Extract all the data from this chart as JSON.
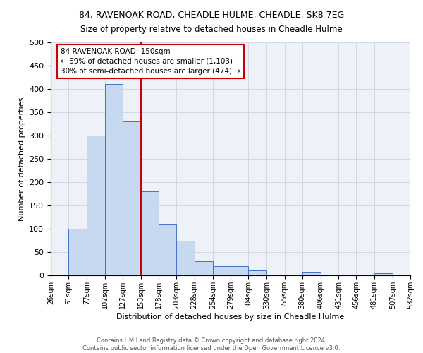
{
  "title": "84, RAVENOAK ROAD, CHEADLE HULME, CHEADLE, SK8 7EG",
  "subtitle": "Size of property relative to detached houses in Cheadle Hulme",
  "xlabel": "Distribution of detached houses by size in Cheadle Hulme",
  "ylabel": "Number of detached properties",
  "bin_edges": [
    26,
    51,
    77,
    102,
    127,
    153,
    178,
    203,
    228,
    254,
    279,
    304,
    330,
    355,
    380,
    406,
    431,
    456,
    481,
    507,
    532
  ],
  "bin_labels": [
    "26sqm",
    "51sqm",
    "77sqm",
    "102sqm",
    "127sqm",
    "153sqm",
    "178sqm",
    "203sqm",
    "228sqm",
    "254sqm",
    "279sqm",
    "304sqm",
    "330sqm",
    "355sqm",
    "380sqm",
    "406sqm",
    "431sqm",
    "456sqm",
    "481sqm",
    "507sqm",
    "532sqm"
  ],
  "counts": [
    0,
    100,
    300,
    410,
    330,
    180,
    110,
    75,
    30,
    20,
    20,
    10,
    0,
    0,
    8,
    0,
    0,
    0,
    5,
    0,
    3
  ],
  "bar_color": "#c6d9f0",
  "bar_edge_color": "#4472c4",
  "reference_line_x": 153,
  "reference_line_color": "#cc0000",
  "annotation_line1": "84 RAVENOAK ROAD: 150sqm",
  "annotation_line2": "← 69% of detached houses are smaller (1,103)",
  "annotation_line3": "30% of semi-detached houses are larger (474) →",
  "annotation_box_color": "#cc0000",
  "ylim": [
    0,
    500
  ],
  "yticks": [
    0,
    50,
    100,
    150,
    200,
    250,
    300,
    350,
    400,
    450,
    500
  ],
  "footer_line1": "Contains HM Land Registry data © Crown copyright and database right 2024.",
  "footer_line2": "Contains public sector information licensed under the Open Government Licence v3.0.",
  "grid_color": "#d0d8e8",
  "background_color": "#eef2f8"
}
